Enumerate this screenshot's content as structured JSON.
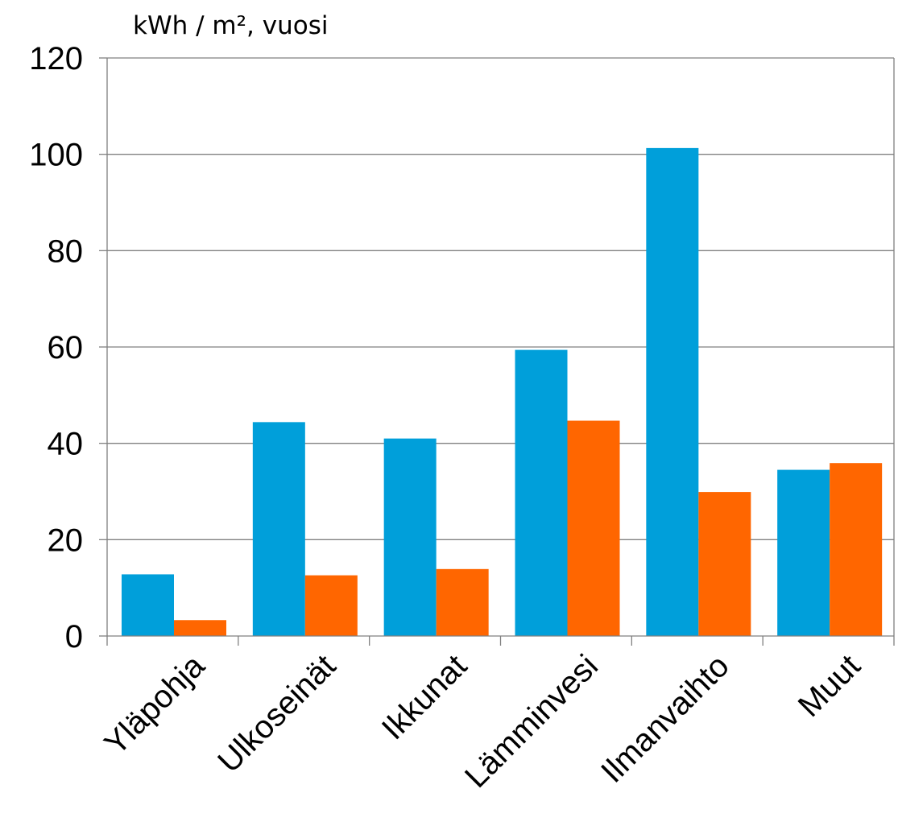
{
  "chart_data": {
    "type": "bar",
    "ylabel": "kWh / m², vuosi",
    "ylim": [
      0,
      120
    ],
    "yticks": [
      0,
      20,
      40,
      60,
      80,
      100,
      120
    ],
    "grid": true,
    "legend": "none",
    "categories": [
      "Yläpohja",
      "Ulkoseinät",
      "Ikkunat",
      "Lämminvesi",
      "Ilmanvaihto",
      "Muut"
    ],
    "series": [
      {
        "color": "#009FDA",
        "values": [
          12.8,
          44.4,
          41.0,
          59.4,
          101.3,
          34.5
        ]
      },
      {
        "color": "#FF6600",
        "values": [
          3.3,
          12.6,
          13.9,
          44.7,
          29.9,
          35.9
        ]
      }
    ],
    "colors": {
      "axis": "#808080",
      "grid": "#808080",
      "text": "#000000"
    }
  }
}
